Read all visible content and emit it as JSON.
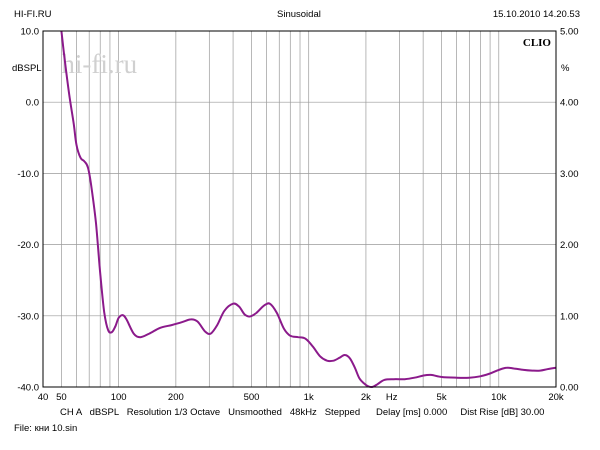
{
  "header": {
    "site": "HI-FI.RU",
    "mode": "Sinusoidal",
    "datetime": "15.10.2010 14.20.53"
  },
  "watermark": "hi-fi.ru",
  "brand": "CLIO",
  "footer": {
    "settings": "CH A   dBSPL   Resolution 1/3 Octave   Unsmoothed   48kHz   Stepped      Delay [ms] 0.000     Dist Rise [dB] 30.00",
    "file": "File: кни 10.sin"
  },
  "colors": {
    "curve": "#8b1a8b",
    "grid": "#9a9a9a",
    "frame": "#000000"
  },
  "chart_data": {
    "type": "line",
    "xscale": "log",
    "xlim": [
      40,
      20000
    ],
    "ylim": [
      -40,
      10
    ],
    "y2lim": [
      0,
      5
    ],
    "ylabel": "dBSPL",
    "y2label": "%",
    "xlabel": "Hz",
    "grid": true,
    "xticks": [
      {
        "value": 40,
        "label": "40"
      },
      {
        "value": 50,
        "label": "50"
      },
      {
        "value": 100,
        "label": "100"
      },
      {
        "value": 200,
        "label": "200"
      },
      {
        "value": 500,
        "label": "500"
      },
      {
        "value": 1000,
        "label": "1k"
      },
      {
        "value": 2000,
        "label": "2k"
      },
      {
        "value": 5000,
        "label": "5k"
      },
      {
        "value": 10000,
        "label": "10k"
      },
      {
        "value": 20000,
        "label": "20k"
      }
    ],
    "yticks": [
      {
        "value": 10,
        "label": "10.0"
      },
      {
        "value": 0,
        "label": "0.0"
      },
      {
        "value": -10,
        "label": "-10.0"
      },
      {
        "value": -20,
        "label": "-20.0"
      },
      {
        "value": -30,
        "label": "-30.0"
      },
      {
        "value": -40,
        "label": "-40.0"
      }
    ],
    "y2ticks": [
      {
        "value": 5,
        "label": "5.00"
      },
      {
        "value": 4,
        "label": "4.00"
      },
      {
        "value": 3,
        "label": "3.00"
      },
      {
        "value": 2,
        "label": "2.00"
      },
      {
        "value": 1,
        "label": "1.00"
      },
      {
        "value": 0,
        "label": "0.00"
      }
    ],
    "series": [
      {
        "values": [
          [
            50,
            10
          ],
          [
            52,
            6
          ],
          [
            55,
            1
          ],
          [
            58,
            -3
          ],
          [
            60,
            -6
          ],
          [
            63,
            -7.8
          ],
          [
            66,
            -8.3
          ],
          [
            69,
            -9.2
          ],
          [
            72,
            -12
          ],
          [
            76,
            -17
          ],
          [
            80,
            -24
          ],
          [
            84,
            -29.5
          ],
          [
            88,
            -32
          ],
          [
            92,
            -32.3
          ],
          [
            96,
            -31.5
          ],
          [
            100,
            -30.3
          ],
          [
            105,
            -29.9
          ],
          [
            110,
            -30.5
          ],
          [
            120,
            -32.5
          ],
          [
            130,
            -33
          ],
          [
            145,
            -32.5
          ],
          [
            165,
            -31.7
          ],
          [
            190,
            -31.3
          ],
          [
            215,
            -30.9
          ],
          [
            240,
            -30.5
          ],
          [
            260,
            -30.8
          ],
          [
            285,
            -32.2
          ],
          [
            305,
            -32.5
          ],
          [
            330,
            -31.3
          ],
          [
            360,
            -29.3
          ],
          [
            400,
            -28.3
          ],
          [
            430,
            -28.7
          ],
          [
            460,
            -29.8
          ],
          [
            490,
            -30.1
          ],
          [
            530,
            -29.6
          ],
          [
            580,
            -28.6
          ],
          [
            625,
            -28.3
          ],
          [
            680,
            -29.6
          ],
          [
            740,
            -31.8
          ],
          [
            800,
            -32.8
          ],
          [
            880,
            -33
          ],
          [
            960,
            -33.2
          ],
          [
            1050,
            -34.3
          ],
          [
            1150,
            -35.7
          ],
          [
            1250,
            -36.3
          ],
          [
            1350,
            -36.3
          ],
          [
            1450,
            -35.9
          ],
          [
            1550,
            -35.5
          ],
          [
            1650,
            -36
          ],
          [
            1750,
            -37.3
          ],
          [
            1850,
            -38.8
          ],
          [
            2000,
            -39.7
          ],
          [
            2150,
            -40
          ],
          [
            2300,
            -39.6
          ],
          [
            2500,
            -39
          ],
          [
            2800,
            -38.9
          ],
          [
            3200,
            -38.9
          ],
          [
            3600,
            -38.7
          ],
          [
            4000,
            -38.4
          ],
          [
            4400,
            -38.3
          ],
          [
            5000,
            -38.6
          ],
          [
            6000,
            -38.7
          ],
          [
            7000,
            -38.7
          ],
          [
            8000,
            -38.5
          ],
          [
            9000,
            -38.1
          ],
          [
            10000,
            -37.6
          ],
          [
            11000,
            -37.3
          ],
          [
            12000,
            -37.4
          ],
          [
            13500,
            -37.6
          ],
          [
            15000,
            -37.7
          ],
          [
            16500,
            -37.7
          ],
          [
            18000,
            -37.5
          ],
          [
            20000,
            -37.3
          ]
        ]
      }
    ]
  }
}
